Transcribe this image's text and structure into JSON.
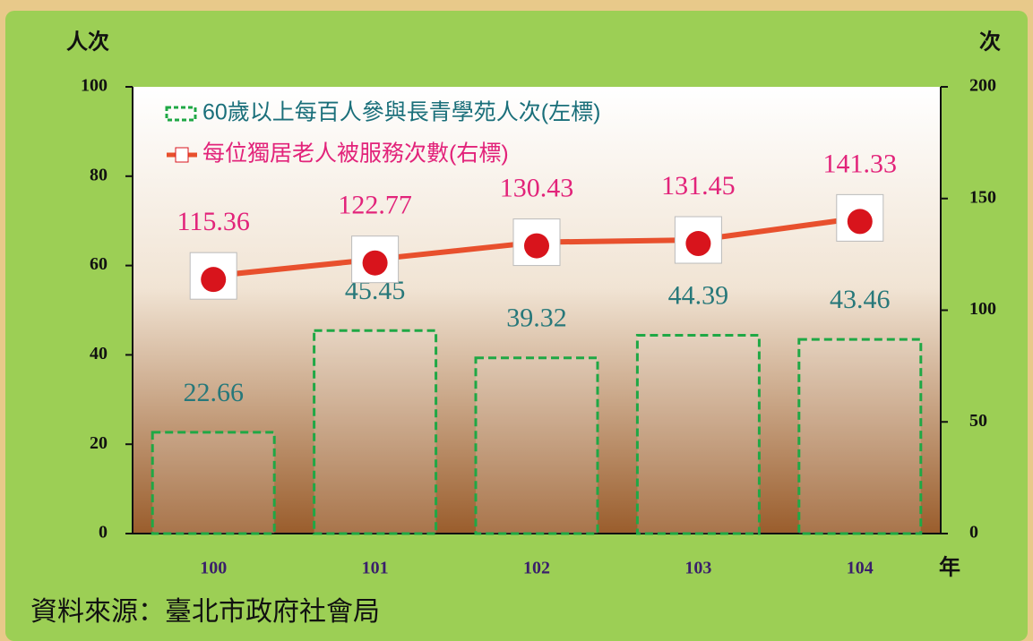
{
  "chart_data": {
    "type": "bar-line",
    "y_label": "人次",
    "y2_label": "次",
    "x_label": "年",
    "source": "資料來源：臺北市政府社會局",
    "categories": [
      "100",
      "101",
      "102",
      "103",
      "104"
    ],
    "ylim": [
      0,
      100
    ],
    "yticks": [
      0,
      20,
      40,
      60,
      80,
      100
    ],
    "y2lim": [
      0,
      200
    ],
    "y2ticks": [
      0,
      50,
      100,
      150,
      200
    ],
    "series": [
      {
        "name": "60歲以上每百人參與長青學苑人次(左標)",
        "type": "bar",
        "color": "#1fa845",
        "values": [
          22.66,
          45.45,
          39.32,
          44.39,
          43.46
        ]
      },
      {
        "name": "每位獨居老人被服務次數(右標)",
        "type": "line",
        "axis": "y2",
        "color": "#e8502d",
        "values": [
          115.36,
          122.77,
          130.43,
          131.45,
          141.33
        ]
      }
    ]
  }
}
